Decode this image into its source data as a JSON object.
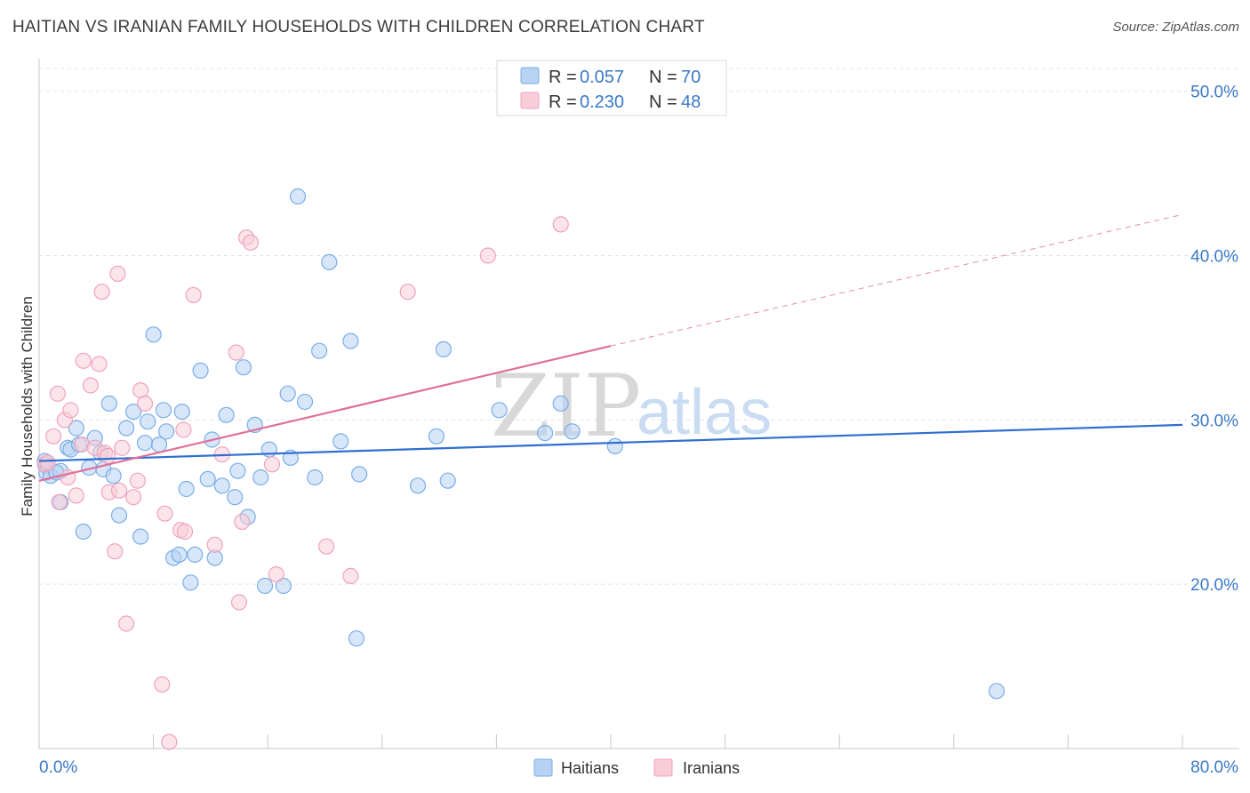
{
  "title": "HAITIAN VS IRANIAN FAMILY HOUSEHOLDS WITH CHILDREN CORRELATION CHART",
  "source": "Source: ZipAtlas.com",
  "watermark": {
    "part1": "ZIP",
    "part2": "atlas"
  },
  "legend": {
    "rows": [
      {
        "r_label": "R = ",
        "r_value": "0.057",
        "n_label": "N = ",
        "n_value": "70"
      },
      {
        "r_label": "R = ",
        "r_value": "0.230",
        "n_label": "N = ",
        "n_value": "48"
      }
    ]
  },
  "bottom_legend": [
    "Haitians",
    "Iranians"
  ],
  "chart_data": {
    "type": "scatter",
    "title": "HAITIAN VS IRANIAN FAMILY HOUSEHOLDS WITH CHILDREN CORRELATION CHART",
    "xlabel": "",
    "ylabel": "Family Households with Children",
    "xlim": [
      0,
      80
    ],
    "ylim": [
      10,
      51.5
    ],
    "x_tick_labels": [
      "0.0%",
      "80.0%"
    ],
    "y_ticks": [
      20,
      30,
      40,
      50
    ],
    "y_tick_labels": [
      "20.0%",
      "30.0%",
      "40.0%",
      "50.0%"
    ],
    "grid": true,
    "legend_position": "top-center",
    "series": [
      {
        "name": "Haitians",
        "color": "#7aaee8",
        "fill": "#b7d2f2",
        "trend_color": "#2f6fd0",
        "trend": {
          "x0": 0,
          "y0": 27.5,
          "x1": 80,
          "y1": 29.7
        },
        "points": [
          [
            0.5,
            27.2
          ],
          [
            0.5,
            26.8
          ],
          [
            0.8,
            26.6
          ],
          [
            0.4,
            27.5
          ],
          [
            1.5,
            25.0
          ],
          [
            1.5,
            26.9
          ],
          [
            2.0,
            28.3
          ],
          [
            2.2,
            28.2
          ],
          [
            2.6,
            29.5
          ],
          [
            2.8,
            28.5
          ],
          [
            3.1,
            23.2
          ],
          [
            3.5,
            27.1
          ],
          [
            3.9,
            28.9
          ],
          [
            4.3,
            28.0
          ],
          [
            4.5,
            27.0
          ],
          [
            4.9,
            31.0
          ],
          [
            5.2,
            26.6
          ],
          [
            5.6,
            24.2
          ],
          [
            6.1,
            29.5
          ],
          [
            6.6,
            30.5
          ],
          [
            7.1,
            22.9
          ],
          [
            7.4,
            28.6
          ],
          [
            7.6,
            29.9
          ],
          [
            8.0,
            35.2
          ],
          [
            8.4,
            28.5
          ],
          [
            8.7,
            30.6
          ],
          [
            8.9,
            29.3
          ],
          [
            9.4,
            21.6
          ],
          [
            9.8,
            21.8
          ],
          [
            10.0,
            30.5
          ],
          [
            10.3,
            25.8
          ],
          [
            10.6,
            20.1
          ],
          [
            10.9,
            21.8
          ],
          [
            11.3,
            33.0
          ],
          [
            11.8,
            26.4
          ],
          [
            12.1,
            28.8
          ],
          [
            12.3,
            21.6
          ],
          [
            12.8,
            26.0
          ],
          [
            13.1,
            30.3
          ],
          [
            13.7,
            25.3
          ],
          [
            13.9,
            26.9
          ],
          [
            14.3,
            33.2
          ],
          [
            14.6,
            24.1
          ],
          [
            15.1,
            29.7
          ],
          [
            15.5,
            26.5
          ],
          [
            15.8,
            19.9
          ],
          [
            16.1,
            28.2
          ],
          [
            17.1,
            19.9
          ],
          [
            17.4,
            31.6
          ],
          [
            17.6,
            27.7
          ],
          [
            18.1,
            43.6
          ],
          [
            18.6,
            31.1
          ],
          [
            19.3,
            26.5
          ],
          [
            19.6,
            34.2
          ],
          [
            20.3,
            39.6
          ],
          [
            21.1,
            28.7
          ],
          [
            21.8,
            34.8
          ],
          [
            22.2,
            16.7
          ],
          [
            22.4,
            26.7
          ],
          [
            26.5,
            26.0
          ],
          [
            27.8,
            29.0
          ],
          [
            28.3,
            34.3
          ],
          [
            28.6,
            26.3
          ],
          [
            32.2,
            30.6
          ],
          [
            35.4,
            29.2
          ],
          [
            36.5,
            31.0
          ],
          [
            37.3,
            29.3
          ],
          [
            40.3,
            28.4
          ],
          [
            67.0,
            13.5
          ],
          [
            1.2,
            26.8
          ]
        ]
      },
      {
        "name": "Iranians",
        "color": "#f0a3bb",
        "fill": "#f8cdd9",
        "trend_color": "#e0709a",
        "trend": {
          "x0": 0,
          "y0": 26.3,
          "x1": 40.0,
          "y1": 34.5,
          "dash_x1": 80,
          "dash_y1": 42.5
        },
        "points": [
          [
            0.4,
            27.3
          ],
          [
            0.6,
            27.4
          ],
          [
            1.0,
            29.0
          ],
          [
            1.3,
            31.6
          ],
          [
            1.4,
            25.0
          ],
          [
            1.8,
            30.0
          ],
          [
            2.0,
            26.5
          ],
          [
            2.2,
            30.6
          ],
          [
            2.6,
            25.4
          ],
          [
            3.0,
            28.5
          ],
          [
            3.1,
            33.6
          ],
          [
            3.6,
            32.1
          ],
          [
            3.9,
            28.3
          ],
          [
            4.2,
            33.4
          ],
          [
            4.4,
            37.8
          ],
          [
            4.6,
            28.0
          ],
          [
            4.8,
            27.8
          ],
          [
            4.9,
            25.6
          ],
          [
            5.3,
            22.0
          ],
          [
            5.5,
            38.9
          ],
          [
            5.6,
            25.7
          ],
          [
            5.8,
            28.3
          ],
          [
            6.1,
            17.6
          ],
          [
            6.6,
            25.3
          ],
          [
            6.9,
            26.3
          ],
          [
            7.1,
            31.8
          ],
          [
            7.4,
            31.0
          ],
          [
            8.6,
            13.9
          ],
          [
            8.8,
            24.3
          ],
          [
            9.1,
            10.4
          ],
          [
            9.9,
            23.3
          ],
          [
            10.1,
            29.4
          ],
          [
            10.2,
            23.2
          ],
          [
            10.8,
            37.6
          ],
          [
            12.3,
            22.4
          ],
          [
            12.8,
            27.9
          ],
          [
            13.8,
            34.1
          ],
          [
            14.0,
            18.9
          ],
          [
            14.2,
            23.8
          ],
          [
            14.5,
            41.1
          ],
          [
            14.8,
            40.8
          ],
          [
            16.3,
            27.3
          ],
          [
            16.6,
            20.6
          ],
          [
            20.1,
            22.3
          ],
          [
            21.8,
            20.5
          ],
          [
            25.8,
            37.8
          ],
          [
            31.4,
            40.0
          ],
          [
            36.5,
            41.9
          ]
        ]
      }
    ]
  }
}
